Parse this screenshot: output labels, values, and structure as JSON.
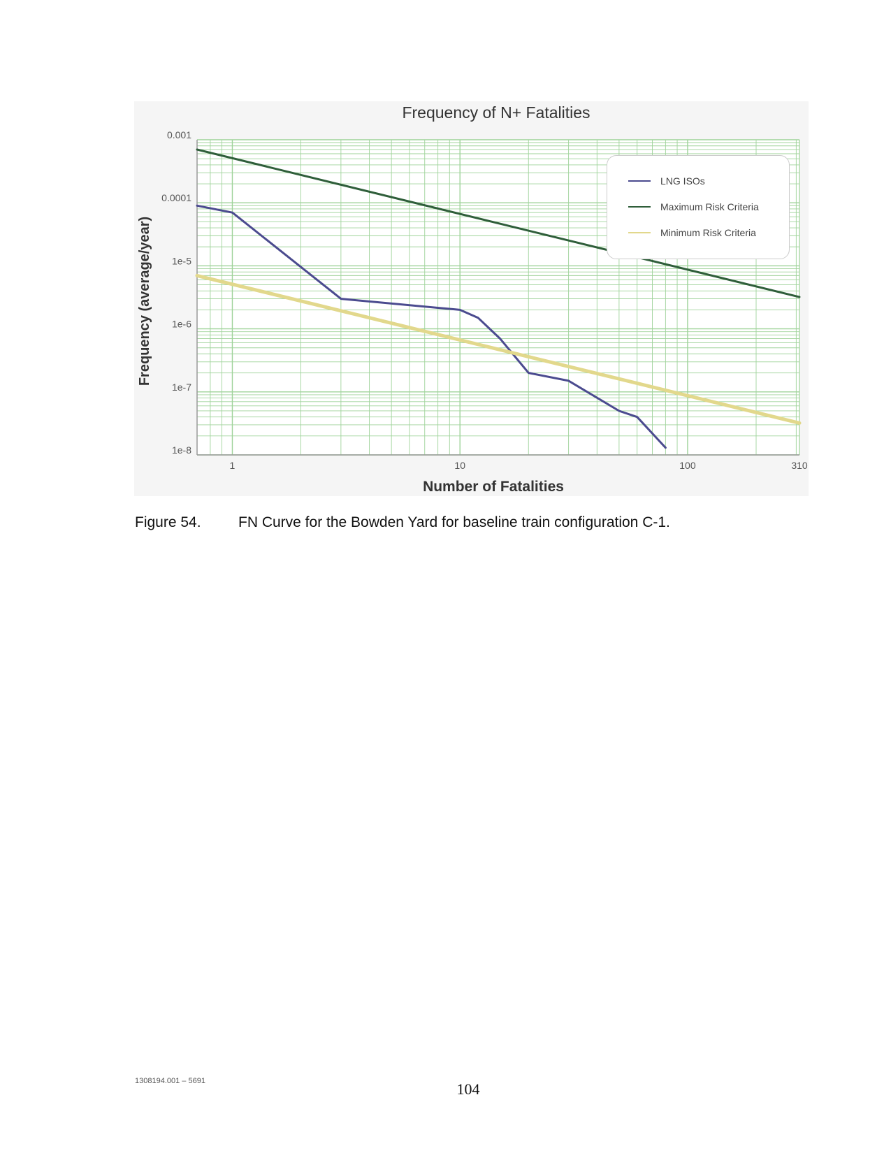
{
  "chart_data": {
    "type": "line",
    "title": "Frequency of N+ Fatalities",
    "xlabel": "Number of Fatalities",
    "ylabel": "Frequency (average/year)",
    "x_scale": "log",
    "y_scale": "log",
    "xlim": [
      0.7,
      310
    ],
    "ylim": [
      1e-08,
      0.001
    ],
    "x_ticks": [
      "1",
      "10",
      "100",
      "310"
    ],
    "x_tick_values": [
      1,
      10,
      100,
      310
    ],
    "y_ticks": [
      "1e-8",
      "1e-7",
      "1e-6",
      "1e-5",
      "0.0001",
      "0.001"
    ],
    "y_tick_values": [
      1e-08,
      1e-07,
      1e-06,
      1e-05,
      0.0001,
      0.001
    ],
    "grid": true,
    "legend_position": "top-right",
    "series": [
      {
        "name": "LNG ISOs",
        "color": "#4b4b8f",
        "x": [
          0.7,
          1,
          3,
          10,
          12,
          15,
          20,
          30,
          50,
          60,
          80
        ],
        "y": [
          9e-05,
          7e-05,
          3e-06,
          2e-06,
          1.5e-06,
          7e-07,
          2e-07,
          1.5e-07,
          5e-08,
          4e-08,
          1.3e-08
        ]
      },
      {
        "name": "Maximum Risk Criteria",
        "color": "#2f5e3a",
        "x": [
          0.7,
          310
        ],
        "y": [
          0.0007,
          3.2e-06
        ]
      },
      {
        "name": "Minimum Risk Criteria",
        "color": "#e2d88c",
        "x": [
          0.7,
          310
        ],
        "y": [
          7e-06,
          3.2e-08
        ]
      }
    ]
  },
  "caption": {
    "number": "Figure 54.",
    "text": "FN Curve for the Bowden Yard for baseline train configuration C-1."
  },
  "footer": {
    "doc_id": "1308194.001 – 5691",
    "page": "104"
  },
  "colors": {
    "grid": "#9fd39a",
    "axis": "#999999"
  }
}
